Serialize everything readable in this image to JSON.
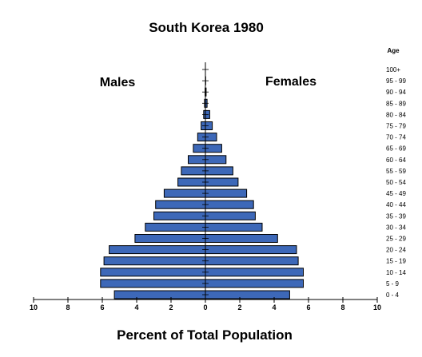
{
  "chart_data": {
    "type": "bar",
    "title": "South Korea 1980",
    "xlabel": "Percent of Total Population",
    "age_header": "Age",
    "side_labels": {
      "left": "Males",
      "right": "Females"
    },
    "orientation": "horizontal-population-pyramid",
    "xlim": [
      -10,
      10
    ],
    "x_ticks": [
      10,
      8,
      6,
      4,
      2,
      0,
      2,
      4,
      6,
      8,
      10
    ],
    "categories": [
      "0 - 4",
      "5 - 9",
      "10 - 14",
      "15 - 19",
      "20 - 24",
      "25 - 29",
      "30 - 34",
      "35 - 39",
      "40 - 44",
      "45 - 49",
      "50 - 54",
      "55 - 59",
      "60 - 64",
      "65 - 69",
      "70 - 74",
      "75 - 79",
      "80 - 84",
      "85 - 89",
      "90 - 94",
      "95 - 99",
      "100+"
    ],
    "series": [
      {
        "name": "Males",
        "values": [
          5.3,
          6.1,
          6.1,
          5.9,
          5.6,
          4.1,
          3.5,
          3.0,
          2.9,
          2.4,
          1.6,
          1.4,
          1.0,
          0.7,
          0.45,
          0.25,
          0.1,
          0.05,
          0.02,
          0.01,
          0.0
        ]
      },
      {
        "name": "Females",
        "values": [
          4.9,
          5.7,
          5.7,
          5.4,
          5.3,
          4.2,
          3.3,
          2.9,
          2.8,
          2.4,
          1.9,
          1.6,
          1.2,
          0.95,
          0.65,
          0.4,
          0.25,
          0.1,
          0.04,
          0.02,
          0.01
        ]
      }
    ],
    "bar_color": "#3d68b8",
    "bar_stroke": "#000000",
    "grid": false
  }
}
